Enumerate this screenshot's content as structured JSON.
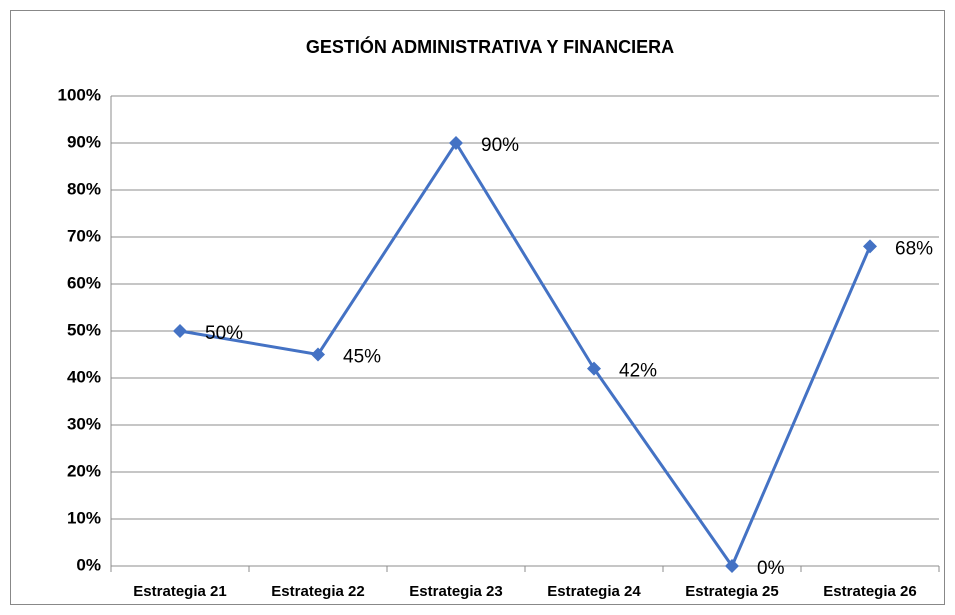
{
  "chart_data": {
    "type": "line",
    "title": "GESTIÓN ADMINISTRATIVA Y FINANCIERA",
    "categories": [
      "Estrategia 21",
      "Estrategia 22",
      "Estrategia 23",
      "Estrategia 24",
      "Estrategia 25",
      "Estrategia 26"
    ],
    "series": [
      {
        "color": "#4472c4",
        "values": [
          50,
          45,
          90,
          42,
          0,
          68
        ],
        "value_labels": [
          "50%",
          "45%",
          "90%",
          "42%",
          "0%",
          "68%"
        ]
      }
    ],
    "ylim": [
      0,
      100
    ],
    "yticks": [
      {
        "value": 0,
        "label": "0%"
      },
      {
        "value": 10,
        "label": "10%"
      },
      {
        "value": 20,
        "label": "20%"
      },
      {
        "value": 30,
        "label": "30%"
      },
      {
        "value": 40,
        "label": "40%"
      },
      {
        "value": 50,
        "label": "50%"
      },
      {
        "value": 60,
        "label": "60%"
      },
      {
        "value": 70,
        "label": "70%"
      },
      {
        "value": 80,
        "label": "80%"
      },
      {
        "value": 90,
        "label": "90%"
      },
      {
        "value": 100,
        "label": "100%"
      }
    ],
    "grid": true
  }
}
